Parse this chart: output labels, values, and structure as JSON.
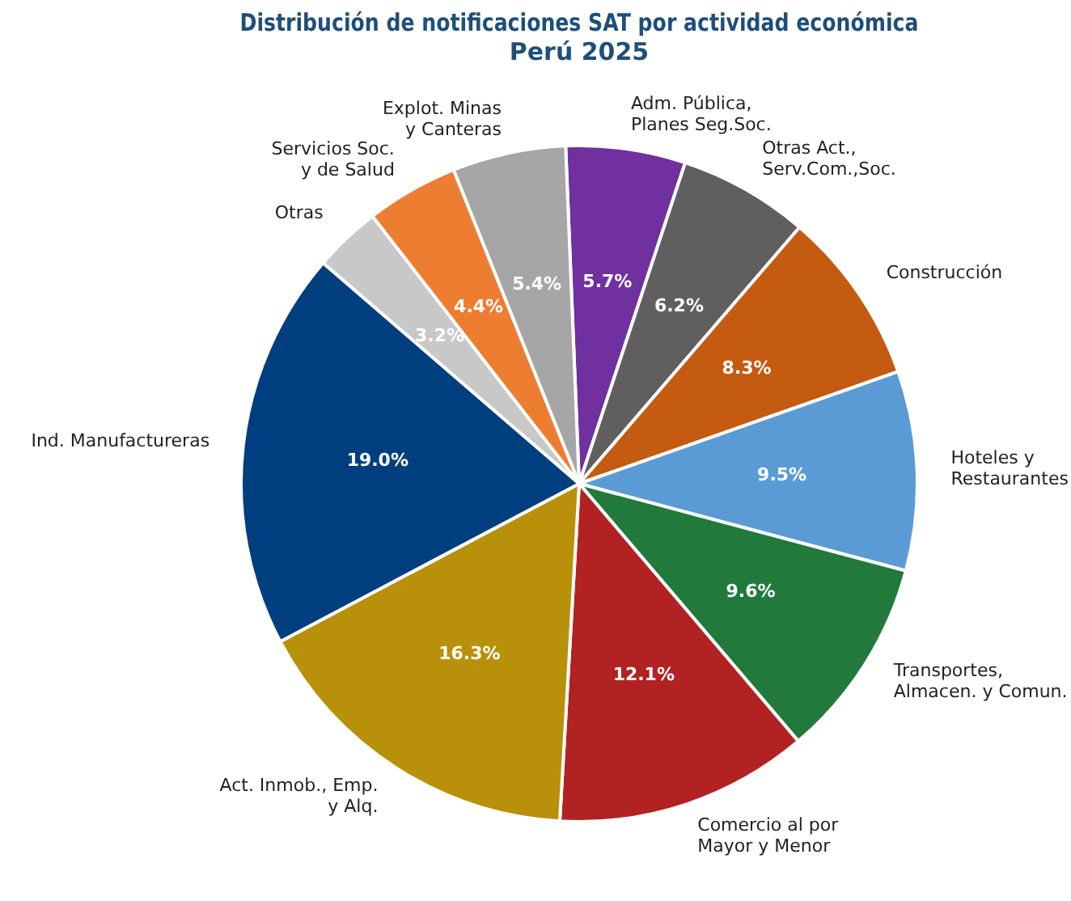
{
  "chart_data": {
    "type": "pie",
    "title": "Distribución de notificaciones SAT por actividad económica\nPerú 2025",
    "categories": [
      "Adm. Pública,\nPlanes Seg.Soc.",
      "Otras Act.,\nServ.Com.,Soc.",
      "Construcción",
      "Hoteles y\nRestaurantes",
      "Transportes,\nAlmacen. y Comun.",
      "Comercio al por\nMayor y Menor",
      "Act. Inmob., Emp.\ny Alq.",
      "Ind. Manufactureras",
      "Otras",
      "Servicios Soc.\ny de Salud",
      "Explot. Minas\ny Canteras"
    ],
    "values": [
      5.7,
      6.2,
      8.3,
      9.5,
      9.6,
      12.1,
      16.3,
      19.0,
      3.2,
      4.4,
      5.4
    ],
    "value_labels": [
      "5.7%",
      "6.2%",
      "8.3%",
      "9.5%",
      "9.6%",
      "12.1%",
      "16.3%",
      "19.0%",
      "3.2%",
      "4.4%",
      "5.4%"
    ],
    "colors": [
      "#7030a0",
      "#5f5f5f",
      "#c55a11",
      "#5b9bd5",
      "#217a3c",
      "#b22222",
      "#b8900a",
      "#003f7f",
      "#c8c8c8",
      "#ed7d31",
      "#a6a6a6"
    ],
    "legend": false
  }
}
